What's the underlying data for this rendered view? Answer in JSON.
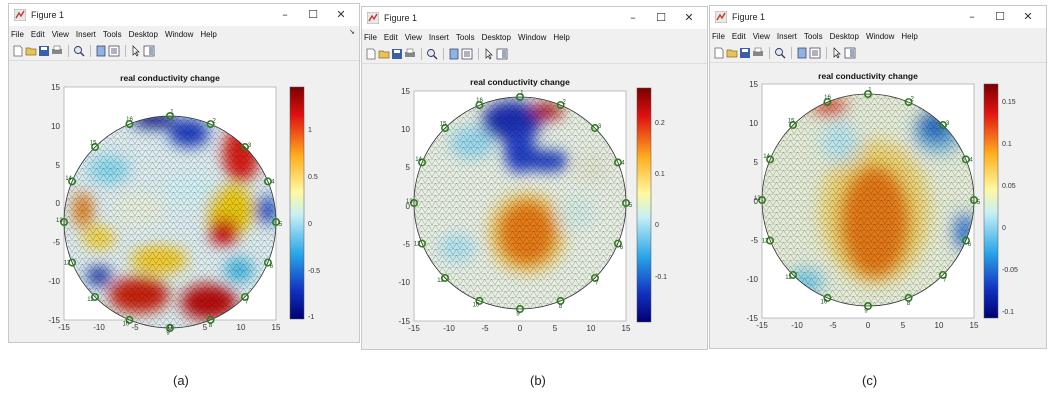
{
  "figure_a": {
    "title": "Figure 1",
    "menu": [
      "File",
      "Edit",
      "View",
      "Insert",
      "Tools",
      "Desktop",
      "Window",
      "Help"
    ],
    "plot_title": "real conductivity change",
    "axis_ticks": [
      "-15",
      "-10",
      "-5",
      "0",
      "5",
      "10",
      "15"
    ],
    "y_ticks": [
      "15",
      "10",
      "5",
      "0",
      "-5",
      "-10",
      "-15"
    ],
    "colorbar_ticks": [
      "1",
      "0.5",
      "0",
      "-0.5",
      "-1"
    ],
    "caption": "(a)"
  },
  "figure_b": {
    "title": "Figure 1",
    "menu": [
      "File",
      "Edit",
      "View",
      "Insert",
      "Tools",
      "Desktop",
      "Window",
      "Help"
    ],
    "plot_title": "real conductivity change",
    "axis_ticks": [
      "-15",
      "-10",
      "-5",
      "0",
      "5",
      "10",
      "15"
    ],
    "y_ticks": [
      "15",
      "10",
      "5",
      "0",
      "-5",
      "-10",
      "-15"
    ],
    "colorbar_ticks": [
      "0.2",
      "0.1",
      "0",
      "-0.1"
    ],
    "caption": "(b)"
  },
  "figure_c": {
    "title": "Figure 1",
    "menu": [
      "File",
      "Edit",
      "View",
      "Insert",
      "Tools",
      "Desktop",
      "Window",
      "Help"
    ],
    "plot_title": "real conductivity change",
    "axis_ticks": [
      "-15",
      "-10",
      "-5",
      "0",
      "5",
      "10",
      "15"
    ],
    "y_ticks": [
      "15",
      "10",
      "5",
      "0",
      "-5",
      "-10",
      "-15"
    ],
    "colorbar_ticks": [
      "0.15",
      "0.1",
      "0.05",
      "0",
      "-0.05",
      "-0.1"
    ],
    "caption": "(c)"
  },
  "electrodes": [
    "1",
    "2",
    "3",
    "4",
    "5",
    "6",
    "7",
    "8",
    "9",
    "10",
    "11",
    "12",
    "13",
    "14",
    "15",
    "16"
  ],
  "window_controls": {
    "minimize": "–",
    "maximize": "☐",
    "close": "✕"
  },
  "colors": {
    "window_bg": "#f0f0f0",
    "titlebar": "#ffffff",
    "electrode": "#2e7d1e"
  }
}
